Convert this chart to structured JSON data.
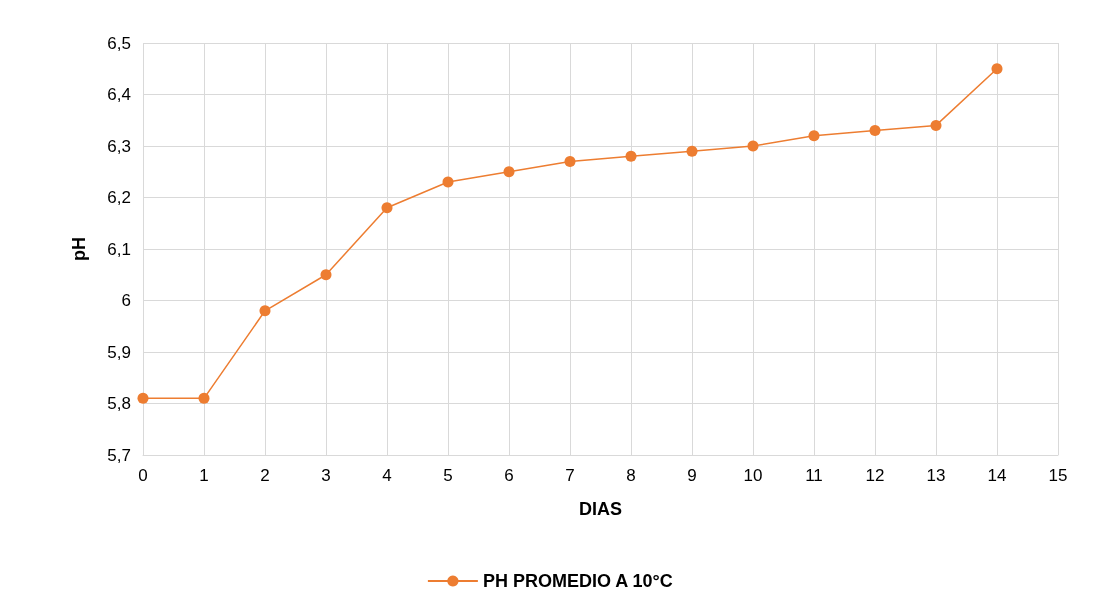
{
  "chart_data": {
    "type": "line",
    "xlabel": "DIAS",
    "ylabel": "pH",
    "x": [
      0,
      1,
      2,
      3,
      4,
      5,
      6,
      7,
      8,
      9,
      10,
      11,
      12,
      13,
      14
    ],
    "series": [
      {
        "name": "PH PROMEDIO A 10°C",
        "color": "#ed7d31",
        "values": [
          5.81,
          5.81,
          5.98,
          6.05,
          6.18,
          6.23,
          6.25,
          6.27,
          6.28,
          6.29,
          6.3,
          6.32,
          6.33,
          6.34,
          6.45
        ]
      }
    ],
    "xlim": [
      0,
      15
    ],
    "xticks": [
      0,
      1,
      2,
      3,
      4,
      5,
      6,
      7,
      8,
      9,
      10,
      11,
      12,
      13,
      14,
      15
    ],
    "ylim": [
      5.7,
      6.5
    ],
    "yticks": [
      {
        "value": 5.7,
        "label": "5,7"
      },
      {
        "value": 5.8,
        "label": "5,8"
      },
      {
        "value": 5.9,
        "label": "5,9"
      },
      {
        "value": 6,
        "label": "6"
      },
      {
        "value": 6.1,
        "label": "6,1"
      },
      {
        "value": 6.2,
        "label": "6,2"
      },
      {
        "value": 6.3,
        "label": "6,3"
      },
      {
        "value": 6.4,
        "label": "6,4"
      },
      {
        "value": 6.5,
        "label": "6,5"
      }
    ],
    "grid": true,
    "legend": "bottom",
    "marker": "circle",
    "line_style": "solid"
  }
}
